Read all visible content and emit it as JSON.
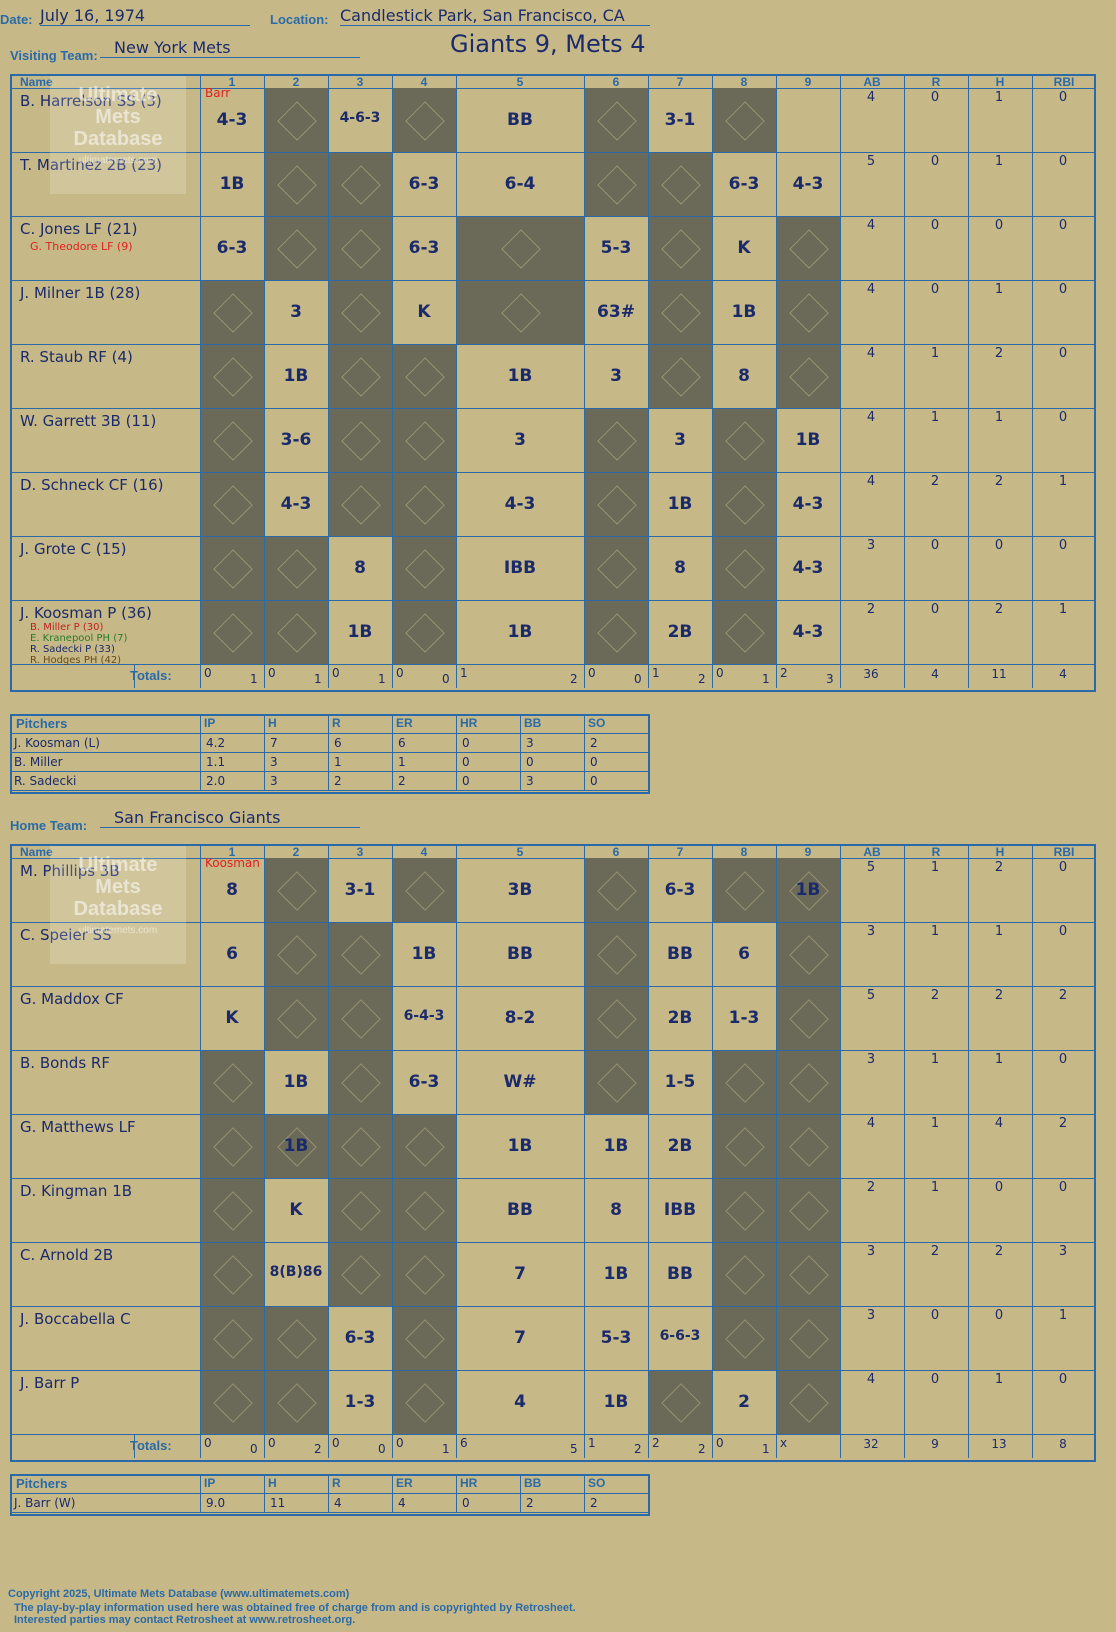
{
  "header": {
    "date_label": "Date:",
    "date": "July 16, 1974",
    "location_label": "Location:",
    "location": "Candlestick Park, San Francisco, CA",
    "visiting_label": "Visiting Team:",
    "visiting_team": "New York Mets",
    "result": "Giants 9, Mets 4",
    "home_label": "Home Team:",
    "home_team": "San Francisco Giants"
  },
  "columns": [
    "Name",
    "1",
    "2",
    "3",
    "4",
    "5",
    "6",
    "7",
    "8",
    "9",
    "AB",
    "R",
    "H",
    "RBI"
  ],
  "watermark": {
    "line1": "Ultimate",
    "line2": "Mets",
    "line3": "Database",
    "url": "ultimatemets.com"
  },
  "visitors": {
    "players": [
      {
        "name": "B. Harrelson SS (3)",
        "ab": "4",
        "r": "0",
        "h": "1",
        "rbi": "0"
      },
      {
        "name": "T. Martinez 2B (23)",
        "ab": "5",
        "r": "0",
        "h": "1",
        "rbi": "0"
      },
      {
        "name": "C. Jones LF (21)",
        "sub": "G. Theodore LF (9)",
        "ab": "4",
        "r": "0",
        "h": "0",
        "rbi": "0"
      },
      {
        "name": "J. Milner 1B (28)",
        "ab": "4",
        "r": "0",
        "h": "1",
        "rbi": "0"
      },
      {
        "name": "R. Staub RF (4)",
        "ab": "4",
        "r": "1",
        "h": "2",
        "rbi": "0"
      },
      {
        "name": "W. Garrett 3B (11)",
        "ab": "4",
        "r": "1",
        "h": "1",
        "rbi": "0"
      },
      {
        "name": "D. Schneck CF (16)",
        "ab": "4",
        "r": "2",
        "h": "2",
        "rbi": "1"
      },
      {
        "name": "J. Grote C (15)",
        "ab": "3",
        "r": "0",
        "h": "0",
        "rbi": "0"
      },
      {
        "name": "J. Koosman P (36)",
        "ab": "2",
        "r": "0",
        "h": "2",
        "rbi": "1"
      }
    ],
    "koosman_subs": [
      "B. Miller P (30)",
      "E. Kranepool PH (7)",
      "R. Sadecki P (33)",
      "R. Hodges PH (42)"
    ],
    "totals_label": "Totals:",
    "totals": {
      "ab": "36",
      "r": "4",
      "h": "11",
      "rbi": "4"
    },
    "inning_totals": [
      [
        "0",
        "1"
      ],
      [
        "0",
        "1"
      ],
      [
        "0",
        "1"
      ],
      [
        "0",
        "0"
      ],
      [
        "1",
        "2"
      ],
      [
        "0",
        "0"
      ],
      [
        "1",
        "2"
      ],
      [
        "0",
        "1"
      ],
      [
        "2",
        "3"
      ]
    ],
    "pitchers_label": "Pitchers",
    "pitchers": [
      {
        "name": "J. Koosman (L)",
        "ip": "4.2",
        "h": "7",
        "r": "6",
        "er": "6",
        "hr": "0",
        "bb": "3",
        "so": "2"
      },
      {
        "name": "B. Miller",
        "ip": "1.1",
        "h": "3",
        "r": "1",
        "er": "1",
        "hr": "0",
        "bb": "0",
        "so": "0"
      },
      {
        "name": "R. Sadecki",
        "ip": "2.0",
        "h": "3",
        "r": "2",
        "er": "2",
        "hr": "0",
        "bb": "3",
        "so": "0"
      }
    ]
  },
  "home": {
    "players": [
      {
        "name": "M. Phillips 3B",
        "ab": "5",
        "r": "1",
        "h": "2",
        "rbi": "0"
      },
      {
        "name": "C. Speier SS",
        "ab": "3",
        "r": "1",
        "h": "1",
        "rbi": "0"
      },
      {
        "name": "G. Maddox CF",
        "ab": "5",
        "r": "2",
        "h": "2",
        "rbi": "2"
      },
      {
        "name": "B. Bonds RF",
        "ab": "3",
        "r": "1",
        "h": "1",
        "rbi": "0"
      },
      {
        "name": "G. Matthews LF",
        "ab": "4",
        "r": "1",
        "h": "4",
        "rbi": "2"
      },
      {
        "name": "D. Kingman 1B",
        "ab": "2",
        "r": "1",
        "h": "0",
        "rbi": "0"
      },
      {
        "name": "C. Arnold 2B",
        "ab": "3",
        "r": "2",
        "h": "2",
        "rbi": "3"
      },
      {
        "name": "J. Boccabella C",
        "ab": "3",
        "r": "0",
        "h": "0",
        "rbi": "1"
      },
      {
        "name": "J. Barr P",
        "ab": "4",
        "r": "0",
        "h": "1",
        "rbi": "0"
      }
    ],
    "totals_label": "Totals:",
    "totals": {
      "ab": "32",
      "r": "9",
      "h": "13",
      "rbi": "8"
    },
    "inning_totals": [
      [
        "0",
        "0"
      ],
      [
        "0",
        "2"
      ],
      [
        "0",
        "0"
      ],
      [
        "0",
        "1"
      ],
      [
        "6",
        "5"
      ],
      [
        "1",
        "2"
      ],
      [
        "2",
        "2"
      ],
      [
        "0",
        "1"
      ],
      [
        "x",
        ""
      ]
    ],
    "pitchers_label": "Pitchers",
    "pitchers": [
      {
        "name": "J. Barr (W)",
        "ip": "9.0",
        "h": "11",
        "r": "4",
        "er": "4",
        "hr": "0",
        "bb": "2",
        "so": "2"
      }
    ]
  },
  "pitcher_columns": [
    "IP",
    "H",
    "R",
    "ER",
    "HR",
    "BB",
    "SO"
  ],
  "plays_visitors": [
    [
      "4-3",
      "",
      "4-6-3",
      "",
      "BB",
      "",
      "3-1",
      "",
      ""
    ],
    [
      "1B",
      "",
      "",
      "6-3",
      "6-4",
      "",
      "",
      "6-3",
      "4-3"
    ],
    [
      "6-3",
      "",
      "",
      "6-3",
      "",
      "5-3",
      "",
      "K",
      ""
    ],
    [
      "",
      "3",
      "",
      "K",
      "",
      "63#",
      "",
      "1B",
      ""
    ],
    [
      "",
      "1B",
      "",
      "",
      "1B",
      "3",
      "",
      "8",
      ""
    ],
    [
      "",
      "3-6",
      "",
      "",
      "3",
      "",
      "3",
      "",
      "1B"
    ],
    [
      "",
      "4-3",
      "",
      "",
      "4-3",
      "",
      "1B",
      "",
      "4-3"
    ],
    [
      "",
      "",
      "8",
      "",
      "IBB",
      "",
      "8",
      "",
      "4-3"
    ],
    [
      "",
      "",
      "1B",
      "",
      "1B",
      "",
      "2B",
      "",
      "4-3"
    ]
  ],
  "plays_home": [
    [
      "8",
      "",
      "3-1",
      "",
      "3B",
      "",
      "6-3",
      "",
      "1B"
    ],
    [
      "6",
      "",
      "",
      "1B",
      "BB",
      "",
      "BB",
      "6",
      ""
    ],
    [
      "K",
      "",
      "",
      "6-4-3",
      "8-2",
      "",
      "2B",
      "1-3",
      ""
    ],
    [
      "",
      "1B",
      "",
      "6-3",
      "W#",
      "",
      "1-5",
      "",
      ""
    ],
    [
      "",
      "1B",
      "",
      "",
      "1B",
      "1B",
      "2B",
      "",
      ""
    ],
    [
      "",
      "K",
      "",
      "",
      "BB",
      "8",
      "IBB",
      "",
      ""
    ],
    [
      "",
      "8(B)86",
      "",
      "",
      "7",
      "1B",
      "BB",
      "",
      ""
    ],
    [
      "",
      "",
      "6-3",
      "",
      "7",
      "5-3",
      "6-6-3",
      "",
      ""
    ],
    [
      "",
      "",
      "1-3",
      "",
      "4",
      "1B",
      "",
      "2",
      ""
    ]
  ],
  "pitcher_marks": {
    "visitors": "Barr",
    "home": "Koosman",
    "sadecki": "Sadecki",
    "miller": "Miller"
  },
  "footer": {
    "line1": "Copyright 2025, Ultimate Mets Database (www.ultimatemets.com)",
    "line2": "The play-by-play information used here was obtained free of charge from and is copyrighted by Retrosheet.",
    "line3": "Interested parties may contact Retrosheet at www.retrosheet.org."
  }
}
